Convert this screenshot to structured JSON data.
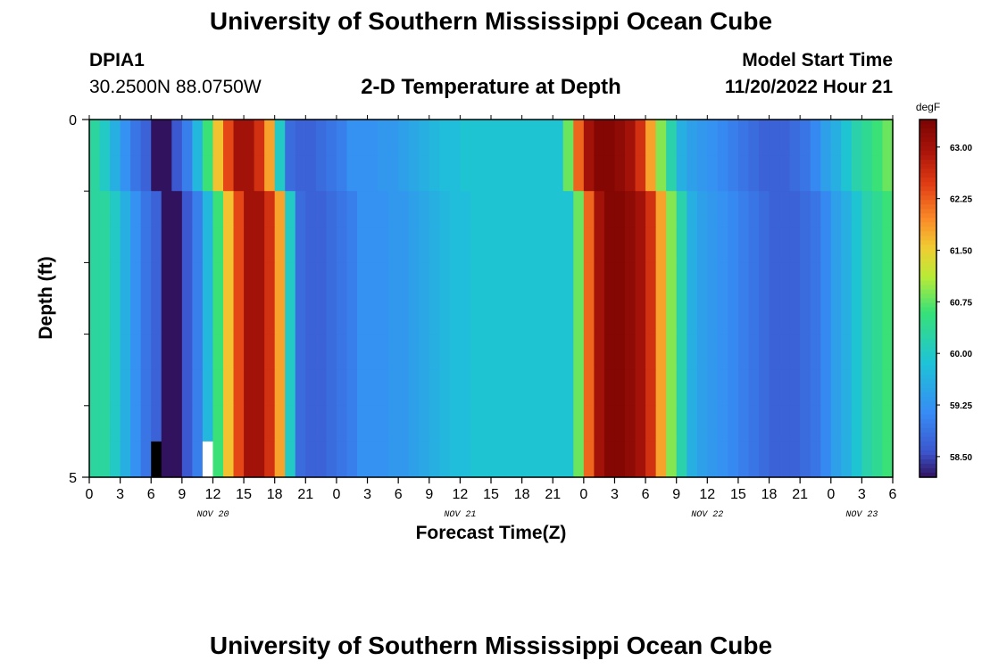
{
  "page": {
    "title": "University of Southern Mississippi Ocean Cube",
    "title_repeat": "University of Southern Mississippi Ocean Cube",
    "station": "DPIA1",
    "coordinates": "30.2500N  88.0750W",
    "subtitle": "2-D Temperature at Depth",
    "model_start_label": "Model Start Time",
    "model_start_value": "11/20/2022 Hour 21"
  },
  "chart_data": {
    "type": "heatmap",
    "xlabel": "Forecast Time(Z)",
    "ylabel": "Depth (ft)",
    "x_start_hour": 0,
    "x_end_hour": 78,
    "x_step_hours": 1,
    "x_ticks": [
      "0",
      "3",
      "6",
      "9",
      "12",
      "15",
      "18",
      "21",
      "0",
      "3",
      "6",
      "9",
      "12",
      "15",
      "18",
      "21",
      "0",
      "3",
      "6",
      "9",
      "12",
      "15",
      "18",
      "21",
      "0",
      "3",
      "6"
    ],
    "date_labels": [
      {
        "label": "NOV 20",
        "hour": 12
      },
      {
        "label": "NOV 21",
        "hour": 36
      },
      {
        "label": "NOV 22",
        "hour": 60
      },
      {
        "label": "NOV 23",
        "hour": 75
      }
    ],
    "y_range": [
      0,
      5
    ],
    "y_tick_labels": [
      {
        "label": "0",
        "value": 0
      },
      {
        "label": "5",
        "value": 5
      }
    ],
    "y_minor_ticks": [
      1,
      2,
      3,
      4
    ],
    "depth_rows": [
      0.25,
      0.75,
      1.25,
      1.75,
      2.25,
      2.75,
      3.25,
      3.75,
      4.25,
      4.75
    ],
    "colorbar": {
      "unit": "degF",
      "min": 58.2,
      "max": 63.4,
      "tick_labels": [
        "63.00",
        "62.25",
        "61.50",
        "60.75",
        "60.00",
        "59.25",
        "58.50"
      ],
      "tick_values": [
        63.0,
        62.25,
        61.5,
        60.75,
        60.0,
        59.25,
        58.5
      ]
    },
    "surface_profile": [
      60.3,
      60.0,
      59.6,
      59.2,
      58.9,
      58.7,
      58.0,
      58.0,
      58.6,
      59.0,
      59.7,
      60.6,
      61.6,
      62.4,
      63.0,
      63.0,
      62.6,
      61.8,
      60.0,
      58.8,
      58.7,
      58.7,
      58.8,
      58.9,
      59.0,
      59.2,
      59.2,
      59.2,
      59.3,
      59.3,
      59.4,
      59.5,
      59.6,
      59.7,
      59.8,
      59.8,
      59.9,
      59.9,
      59.9,
      59.9,
      59.9,
      59.9,
      59.9,
      59.9,
      59.9,
      59.9,
      60.8,
      62.2,
      63.0,
      63.3,
      63.3,
      63.2,
      63.0,
      62.6,
      61.8,
      60.9,
      60.2,
      59.6,
      59.4,
      59.3,
      59.2,
      59.1,
      59.0,
      58.9,
      58.8,
      58.7,
      58.7,
      58.7,
      58.8,
      58.9,
      59.1,
      59.4,
      59.6,
      59.9,
      60.2,
      60.4,
      60.6,
      60.8
    ],
    "profile_shifts": [
      0,
      0,
      1,
      1,
      1,
      1,
      1,
      1,
      1,
      1
    ],
    "missing_cells": [
      {
        "hour": 6,
        "depth_row": 9,
        "color": "#000000"
      },
      {
        "hour": 11,
        "depth_row": 9,
        "color": "#ffffff"
      }
    ]
  }
}
